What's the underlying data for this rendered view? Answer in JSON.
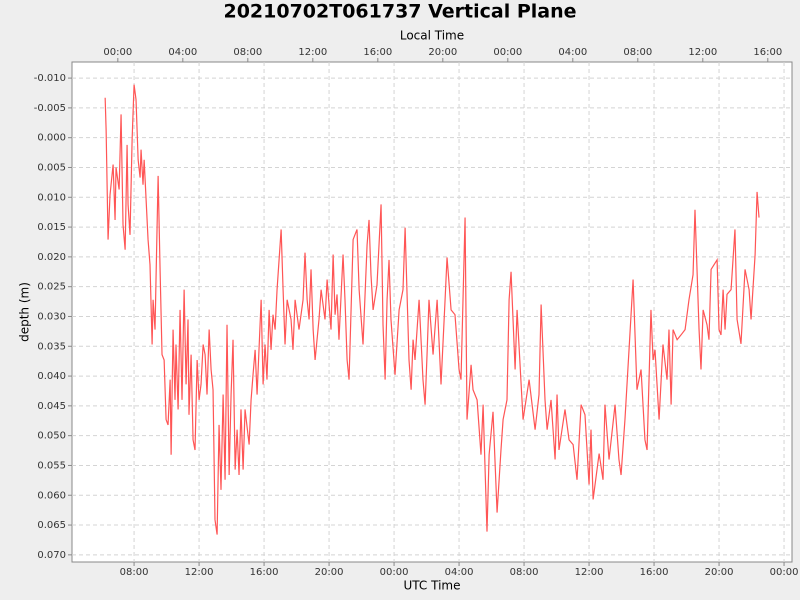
{
  "chart_data": {
    "type": "line",
    "title": "20210702T061737 Vertical Plane",
    "x_label": "UTC Time",
    "x2_label": "Local Time",
    "y_label": "depth (m)",
    "y_inverted": true,
    "grid": true,
    "color": "#ff5555",
    "xlim": [
      4.18,
      48.49
    ],
    "ylim": [
      -0.0127,
      0.0712
    ],
    "xticks": [
      {
        "value": 8,
        "label": "08:00"
      },
      {
        "value": 12,
        "label": "12:00"
      },
      {
        "value": 16,
        "label": "16:00"
      },
      {
        "value": 20,
        "label": "20:00"
      },
      {
        "value": 24,
        "label": "00:00"
      },
      {
        "value": 28,
        "label": "04:00"
      },
      {
        "value": 32,
        "label": "08:00"
      },
      {
        "value": 36,
        "label": "12:00"
      },
      {
        "value": 40,
        "label": "16:00"
      },
      {
        "value": 44,
        "label": "20:00"
      },
      {
        "value": 48,
        "label": "00:00"
      }
    ],
    "x2ticks": [
      {
        "value": 7,
        "label": "00:00"
      },
      {
        "value": 11,
        "label": "04:00"
      },
      {
        "value": 15,
        "label": "08:00"
      },
      {
        "value": 19,
        "label": "12:00"
      },
      {
        "value": 23,
        "label": "16:00"
      },
      {
        "value": 27,
        "label": "20:00"
      },
      {
        "value": 31,
        "label": "00:00"
      },
      {
        "value": 35,
        "label": "04:00"
      },
      {
        "value": 39,
        "label": "08:00"
      },
      {
        "value": 43,
        "label": "12:00"
      },
      {
        "value": 47,
        "label": "16:00"
      }
    ],
    "yticks": [
      {
        "value": -0.01,
        "label": "-0.010"
      },
      {
        "value": -0.005,
        "label": "-0.005"
      },
      {
        "value": 0,
        "label": "0.000"
      },
      {
        "value": 0.005,
        "label": "0.005"
      },
      {
        "value": 0.01,
        "label": "0.010"
      },
      {
        "value": 0.015,
        "label": "0.015"
      },
      {
        "value": 0.02,
        "label": "0.020"
      },
      {
        "value": 0.025,
        "label": "0.025"
      },
      {
        "value": 0.03,
        "label": "0.030"
      },
      {
        "value": 0.035,
        "label": "0.035"
      },
      {
        "value": 0.04,
        "label": "0.040"
      },
      {
        "value": 0.045,
        "label": "0.045"
      },
      {
        "value": 0.05,
        "label": "0.050"
      },
      {
        "value": 0.055,
        "label": "0.055"
      },
      {
        "value": 0.06,
        "label": "0.060"
      },
      {
        "value": 0.065,
        "label": "0.065"
      },
      {
        "value": 0.07,
        "label": "0.070"
      }
    ],
    "x": [
      6.22,
      6.28,
      6.4,
      6.52,
      6.71,
      6.83,
      6.89,
      7.08,
      7.2,
      7.32,
      7.45,
      7.57,
      7.63,
      7.75,
      7.88,
      8.0,
      8.12,
      8.25,
      8.37,
      8.43,
      8.55,
      8.62,
      8.74,
      8.86,
      8.98,
      9.11,
      9.17,
      9.29,
      9.35,
      9.48,
      9.6,
      9.72,
      9.85,
      9.97,
      10.09,
      10.22,
      10.28,
      10.4,
      10.52,
      10.58,
      10.71,
      10.83,
      10.95,
      11.08,
      11.2,
      11.32,
      11.38,
      11.51,
      11.63,
      11.75,
      11.88,
      12.0,
      12.12,
      12.25,
      12.37,
      12.49,
      12.62,
      12.74,
      12.86,
      12.98,
      13.11,
      13.23,
      13.35,
      13.48,
      13.6,
      13.72,
      13.85,
      13.97,
      14.09,
      14.22,
      14.34,
      14.46,
      14.58,
      14.71,
      14.83,
      15.08,
      15.2,
      15.32,
      15.45,
      15.57,
      15.82,
      15.94,
      16.06,
      16.18,
      16.31,
      16.43,
      16.55,
      16.68,
      16.8,
      17.05,
      17.17,
      17.29,
      17.42,
      17.66,
      17.78,
      17.91,
      18.15,
      18.4,
      18.52,
      18.65,
      18.77,
      18.89,
      19.02,
      19.14,
      19.38,
      19.51,
      19.75,
      19.88,
      20.12,
      20.25,
      20.37,
      20.49,
      20.61,
      20.86,
      20.98,
      21.11,
      21.23,
      21.48,
      21.72,
      21.85,
      22.09,
      22.34,
      22.46,
      22.58,
      22.71,
      22.95,
      23.2,
      23.32,
      23.45,
      23.57,
      23.69,
      23.81,
      24.06,
      24.31,
      24.55,
      24.68,
      24.8,
      24.92,
      25.05,
      25.17,
      25.29,
      25.54,
      25.78,
      25.91,
      26.03,
      26.15,
      26.4,
      26.65,
      26.89,
      27.14,
      27.26,
      27.51,
      27.75,
      28.0,
      28.12,
      28.37,
      28.49,
      28.74,
      28.86,
      29.11,
      29.35,
      29.48,
      29.72,
      29.85,
      30.09,
      30.34,
      30.58,
      30.71,
      30.95,
      31.08,
      31.2,
      31.45,
      31.57,
      31.82,
      31.94,
      32.31,
      32.68,
      32.92,
      33.05,
      33.29,
      33.42,
      33.66,
      33.91,
      34.03,
      34.15,
      34.52,
      34.77,
      35.02,
      35.26,
      35.51,
      35.75,
      36.0,
      36.12,
      36.25,
      36.62,
      36.86,
      36.98,
      37.23,
      37.6,
      37.84,
      37.97,
      38.21,
      38.46,
      38.71,
      38.95,
      39.2,
      39.44,
      39.57,
      39.81,
      39.94,
      40.06,
      40.31,
      40.55,
      40.8,
      40.92,
      41.05,
      41.17,
      41.42,
      41.66,
      41.91,
      42.15,
      42.4,
      42.52,
      42.77,
      42.89,
      43.02,
      43.26,
      43.38,
      43.51,
      43.88,
      44.0,
      44.12,
      44.25,
      44.37,
      44.49,
      44.74,
      44.98,
      45.11,
      45.35,
      45.6,
      45.85,
      45.97,
      46.22,
      46.34,
      46.46
    ],
    "values": [
      -0.0067,
      -0.0013,
      0.0171,
      0.0096,
      0.0045,
      0.0138,
      0.005,
      0.0087,
      -0.0039,
      0.0146,
      0.0188,
      0.0012,
      0.0112,
      0.0163,
      0.0003,
      -0.0089,
      -0.0064,
      0.0037,
      0.0067,
      0.002,
      0.0079,
      0.0037,
      0.0104,
      0.0171,
      0.0213,
      0.0347,
      0.0272,
      0.0322,
      0.0238,
      0.0064,
      0.0221,
      0.0364,
      0.0373,
      0.0473,
      0.0482,
      0.0406,
      0.0532,
      0.0322,
      0.044,
      0.0347,
      0.0456,
      0.0289,
      0.044,
      0.0255,
      0.0414,
      0.0305,
      0.0465,
      0.0364,
      0.0507,
      0.0524,
      0.0373,
      0.044,
      0.0414,
      0.0347,
      0.0364,
      0.0431,
      0.0322,
      0.0389,
      0.0423,
      0.0641,
      0.0666,
      0.0482,
      0.0591,
      0.0431,
      0.0574,
      0.0314,
      0.0566,
      0.0431,
      0.0339,
      0.0557,
      0.049,
      0.0566,
      0.0456,
      0.0557,
      0.0456,
      0.0515,
      0.044,
      0.0398,
      0.0356,
      0.0431,
      0.0272,
      0.0414,
      0.0347,
      0.0406,
      0.0289,
      0.0356,
      0.0297,
      0.0322,
      0.0255,
      0.0154,
      0.0255,
      0.0347,
      0.0272,
      0.0305,
      0.0356,
      0.0272,
      0.0322,
      0.0272,
      0.0193,
      0.0272,
      0.0305,
      0.0221,
      0.0322,
      0.0373,
      0.0305,
      0.0255,
      0.0305,
      0.0238,
      0.0322,
      0.0196,
      0.0297,
      0.0263,
      0.0339,
      0.0196,
      0.0272,
      0.0373,
      0.0406,
      0.0171,
      0.0154,
      0.0255,
      0.0347,
      0.018,
      0.0138,
      0.023,
      0.0289,
      0.0247,
      0.0112,
      0.0314,
      0.0406,
      0.0272,
      0.0205,
      0.0305,
      0.0398,
      0.0289,
      0.0255,
      0.0151,
      0.0263,
      0.0373,
      0.0423,
      0.0339,
      0.0373,
      0.0272,
      0.0406,
      0.0448,
      0.0364,
      0.0272,
      0.0364,
      0.0272,
      0.0414,
      0.0272,
      0.0201,
      0.0289,
      0.0297,
      0.0389,
      0.0406,
      0.0134,
      0.0473,
      0.0381,
      0.0423,
      0.044,
      0.0532,
      0.0448,
      0.0661,
      0.0532,
      0.046,
      0.0629,
      0.0524,
      0.0473,
      0.044,
      0.0272,
      0.0225,
      0.0389,
      0.0289,
      0.0414,
      0.0473,
      0.0406,
      0.049,
      0.0431,
      0.028,
      0.044,
      0.049,
      0.044,
      0.054,
      0.0431,
      0.0524,
      0.0456,
      0.0507,
      0.0515,
      0.0574,
      0.0448,
      0.0465,
      0.0582,
      0.049,
      0.0607,
      0.053,
      0.0574,
      0.0448,
      0.054,
      0.0448,
      0.054,
      0.0566,
      0.0473,
      0.0356,
      0.0238,
      0.0423,
      0.0389,
      0.0507,
      0.0524,
      0.0289,
      0.0373,
      0.0356,
      0.0473,
      0.0347,
      0.0406,
      0.0322,
      0.0448,
      0.0322,
      0.0339,
      0.0331,
      0.0322,
      0.0272,
      0.023,
      0.0121,
      0.0322,
      0.0389,
      0.0289,
      0.0314,
      0.0339,
      0.0221,
      0.0205,
      0.0322,
      0.0331,
      0.0255,
      0.0322,
      0.0263,
      0.0255,
      0.0154,
      0.0305,
      0.0346,
      0.0221,
      0.0255,
      0.0305,
      0.0196,
      0.0091,
      0.0134
    ]
  }
}
